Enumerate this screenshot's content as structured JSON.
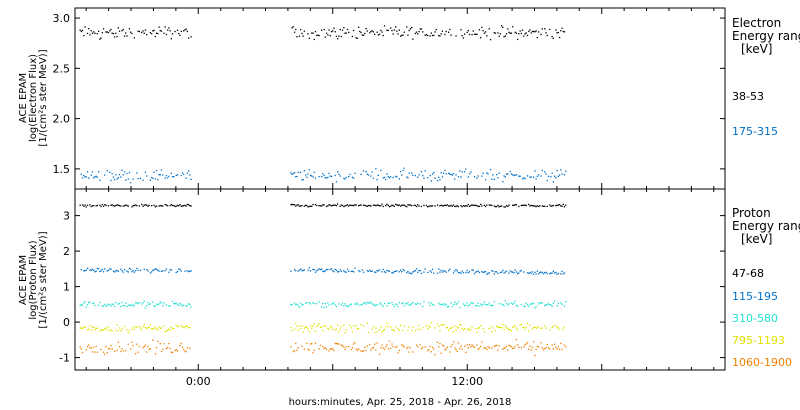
{
  "chart_data": {
    "type": "scatter",
    "x_axis": {
      "label": "hours:minutes, Apr. 25, 2018 - Apr. 26, 2018",
      "range_hours": [
        -5.5,
        23.5
      ],
      "ticks": [
        {
          "hour": 0,
          "label": "0:00"
        },
        {
          "hour": 12,
          "label": "12:00"
        }
      ]
    },
    "panels": [
      {
        "instrument": "ACE EPAM",
        "ylabel": "log(Electron Flux)",
        "yunits": "[1/(cm²s ster MeV)]",
        "ylim": [
          1.3,
          3.1
        ],
        "yticks": [
          1.5,
          2.0,
          2.5,
          3.0
        ],
        "ytick_labels": [
          "1.5",
          "2.0",
          "2.5",
          "3.0"
        ],
        "legend_title": "Electron",
        "legend_subtitle": "Energy range",
        "legend_units": "[keV]",
        "series": [
          {
            "name": "38-53",
            "color": "#000000",
            "mean": 2.86,
            "spread": 0.05,
            "segments": [
              [
                -5.3,
                -0.3
              ],
              [
                4.1,
                16.4
              ]
            ]
          },
          {
            "name": "175-315",
            "color": "#0070c8",
            "mean": 1.44,
            "spread": 0.05,
            "segments": [
              [
                -5.3,
                -0.3
              ],
              [
                4.1,
                16.4
              ]
            ]
          }
        ]
      },
      {
        "instrument": "ACE EPAM",
        "ylabel": "log(Proton Flux)",
        "yunits": "[1/(cm²s ster MeV)]",
        "ylim": [
          -1.35,
          3.75
        ],
        "yticks": [
          -1,
          0,
          1,
          2,
          3
        ],
        "ytick_labels": [
          "-1",
          "0",
          "1",
          "2",
          "3"
        ],
        "legend_title": "Proton",
        "legend_subtitle": "Energy range",
        "legend_units": "[keV]",
        "series": [
          {
            "name": "47-68",
            "color": "#000000",
            "mean": 3.3,
            "spread": 0.03,
            "segments": [
              [
                -5.3,
                -0.3
              ],
              [
                4.1,
                16.4
              ]
            ]
          },
          {
            "name": "115-195",
            "color": "#0070c8",
            "mean": 1.48,
            "spread": 0.05,
            "trend": -0.12,
            "segments": [
              [
                -5.3,
                -0.3
              ],
              [
                4.1,
                16.4
              ]
            ]
          },
          {
            "name": "310-580",
            "color": "#20e0d0",
            "mean": 0.52,
            "spread": 0.07,
            "segments": [
              [
                -5.3,
                -0.3
              ],
              [
                4.1,
                16.4
              ]
            ]
          },
          {
            "name": "795-1193",
            "color": "#e0e000",
            "mean": -0.15,
            "spread": 0.1,
            "segments": [
              [
                -5.3,
                -0.3
              ],
              [
                4.1,
                16.4
              ]
            ]
          },
          {
            "name": "1060-1900",
            "color": "#f08000",
            "mean": -0.7,
            "spread": 0.14,
            "segments": [
              [
                -5.3,
                -0.3
              ],
              [
                4.1,
                16.4
              ]
            ]
          }
        ]
      }
    ]
  }
}
